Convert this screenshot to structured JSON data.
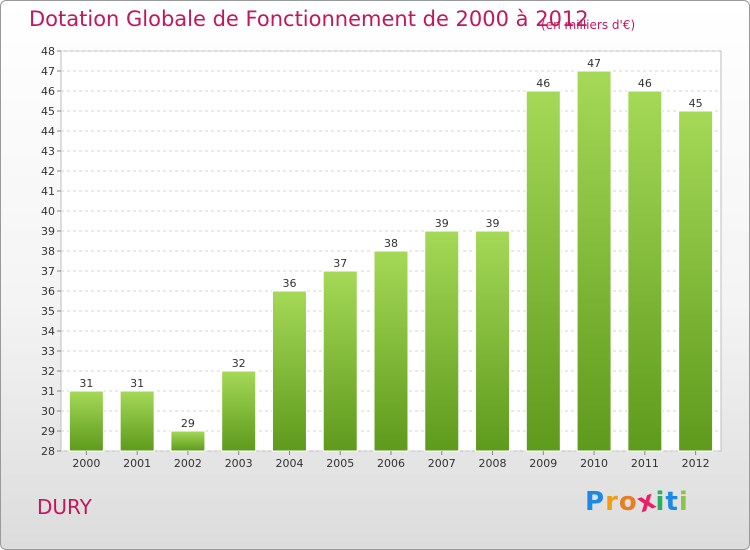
{
  "header": {
    "title": "Dotation Globale de Fonctionnement de 2000 à 2012",
    "unit": "(en milliers d'€)"
  },
  "footer": {
    "commune": "DURY",
    "logo": "Proxiti",
    "logo_letters": [
      {
        "char": "P",
        "color": "#1e88e5"
      },
      {
        "char": "r",
        "color": "#f39c12"
      },
      {
        "char": "o",
        "color": "#e67e22"
      },
      {
        "char": "x",
        "color": "#e91e63"
      },
      {
        "char": "i",
        "color": "#27ae60"
      },
      {
        "char": "t",
        "color": "#1e88e5"
      },
      {
        "char": "i",
        "color": "#8bc34a"
      }
    ]
  },
  "chart_data": {
    "type": "bar",
    "title": "Dotation Globale de Fonctionnement de 2000 à 2012",
    "subtitle": "(en milliers d'€)",
    "xlabel": "",
    "ylabel": "",
    "categories": [
      "2000",
      "2001",
      "2002",
      "2003",
      "2004",
      "2005",
      "2006",
      "2007",
      "2008",
      "2009",
      "2010",
      "2011",
      "2012"
    ],
    "values": [
      31,
      31,
      29,
      32,
      36,
      37,
      38,
      39,
      39,
      46,
      47,
      46,
      45
    ],
    "ylim": [
      28,
      48
    ],
    "yticks": [
      28,
      29,
      30,
      31,
      32,
      33,
      34,
      35,
      36,
      37,
      38,
      39,
      40,
      41,
      42,
      43,
      44,
      45,
      46,
      47,
      48
    ],
    "grid": true,
    "legend": "none",
    "bar_color": "#7dc13a",
    "bar_color_light": "#a5d957",
    "bar_color_dark": "#5e9a1c"
  }
}
